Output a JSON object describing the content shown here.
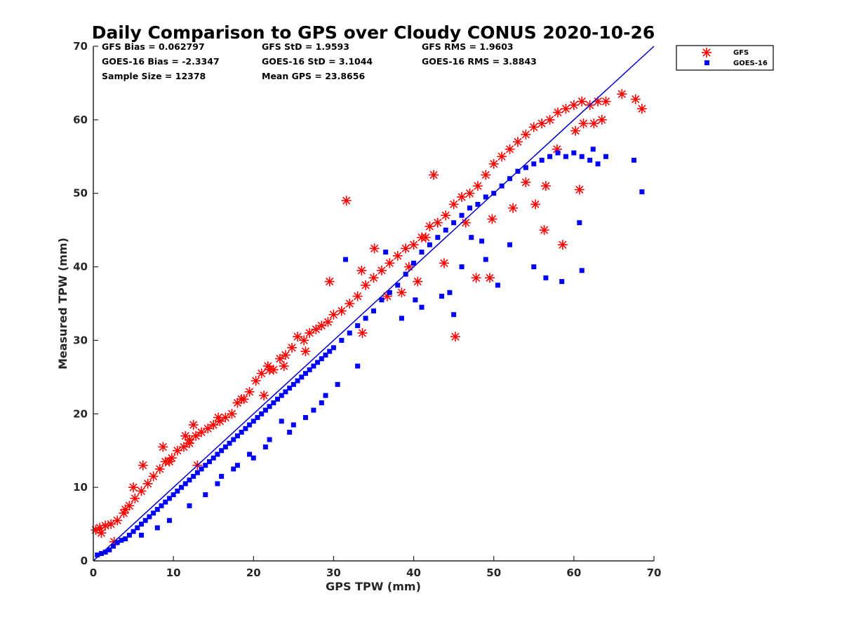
{
  "chart_data": {
    "type": "scatter",
    "title": "Daily Comparison to GPS over Cloudy CONUS 2020-10-26",
    "xlabel": "GPS TPW (mm)",
    "ylabel": "Measured TPW (mm)",
    "xlim": [
      0,
      70
    ],
    "ylim": [
      0,
      70
    ],
    "xticks": [
      0,
      10,
      20,
      30,
      40,
      50,
      60,
      70
    ],
    "yticks": [
      0,
      10,
      20,
      30,
      40,
      50,
      60,
      70
    ],
    "grid": false,
    "legend_position": "outside top-right",
    "reference_line": {
      "name": "1:1 line",
      "x": [
        0,
        70
      ],
      "y": [
        0,
        70
      ],
      "color": "#0000cc"
    },
    "annotations": [
      "GFS Bias = 0.062797",
      "GFS StD = 1.9593",
      "GFS RMS = 1.9603",
      "GOES-16 Bias = -2.3347",
      "GOES-16 StD = 3.1044",
      "GOES-16 RMS = 3.8843",
      "Sample Size = 12378",
      "Mean GPS = 23.8656"
    ],
    "series": [
      {
        "name": "GFS",
        "marker": "asterisk",
        "color": "#ff0000",
        "x": [
          0.3,
          0.8,
          1.5,
          2.2,
          3.0,
          3.8,
          4.5,
          5.2,
          6.0,
          6.8,
          7.5,
          8.3,
          9.0,
          9.8,
          10.5,
          11.3,
          12.0,
          12.8,
          13.5,
          14.3,
          15.0,
          15.8,
          16.5,
          17.3,
          18.0,
          18.8,
          19.5,
          20.3,
          21.0,
          21.8,
          22.5,
          23.3,
          24.0,
          24.8,
          25.5,
          26.3,
          27.0,
          27.8,
          28.5,
          29.3,
          30.0,
          31.0,
          32.0,
          33.0,
          34.0,
          35.0,
          36.0,
          37.0,
          38.0,
          39.0,
          40.0,
          41.0,
          42.0,
          43.0,
          44.0,
          45.0,
          46.0,
          47.0,
          48.0,
          49.0,
          50.0,
          51.0,
          52.0,
          53.0,
          54.0,
          55.0,
          56.0,
          57.0,
          58.0,
          59.0,
          60.0,
          61.0,
          62.0,
          63.0,
          64.0,
          5.0,
          8.7,
          11.5,
          13.0,
          22.0,
          31.6,
          42.5,
          45.2,
          47.8,
          56.3,
          58.6,
          60.7,
          66.0,
          67.7,
          68.5,
          4.0,
          6.2,
          9.5,
          12.5,
          15.6,
          18.5,
          21.3,
          23.8,
          26.5,
          29.5,
          33.5,
          36.7,
          39.4,
          41.5,
          43.8,
          46.5,
          49.8,
          52.4,
          55.2,
          57.9,
          60.2,
          62.5,
          1.0,
          2.6,
          12.0,
          33.6,
          35.1,
          38.5,
          40.5,
          49.5,
          54.0,
          56.5,
          61.2,
          63.5
        ],
        "y": [
          4.2,
          4.5,
          4.8,
          5.0,
          5.5,
          6.5,
          7.5,
          8.5,
          9.5,
          10.5,
          11.5,
          12.5,
          13.5,
          14.0,
          15.0,
          15.5,
          16.5,
          17.0,
          17.5,
          18.0,
          18.5,
          19.0,
          19.5,
          20.0,
          21.5,
          22.0,
          23.0,
          24.5,
          25.5,
          26.5,
          26.0,
          27.5,
          28.0,
          29.0,
          30.5,
          30.0,
          31.0,
          31.5,
          32.0,
          32.5,
          33.5,
          34.0,
          35.0,
          36.0,
          37.5,
          38.5,
          39.5,
          40.5,
          41.5,
          42.5,
          43.0,
          44.0,
          45.5,
          46.0,
          47.0,
          48.5,
          49.5,
          50.0,
          51.0,
          52.5,
          54.0,
          55.0,
          56.0,
          57.0,
          58.0,
          59.0,
          59.5,
          60.0,
          61.0,
          61.5,
          62.0,
          62.5,
          62.0,
          62.5,
          62.5,
          10.0,
          15.5,
          17.0,
          13.0,
          26.0,
          49.0,
          52.5,
          30.5,
          38.5,
          45.0,
          43.0,
          50.5,
          63.5,
          62.8,
          61.5,
          7.0,
          13.0,
          13.5,
          18.5,
          19.5,
          22.0,
          22.5,
          26.5,
          28.5,
          38.0,
          39.5,
          36.0,
          40.0,
          44.0,
          40.5,
          46.0,
          46.5,
          48.0,
          48.5,
          56.0,
          58.5,
          59.5,
          3.8,
          2.6,
          16.0,
          31.0,
          42.5,
          36.5,
          38.0,
          38.5,
          51.5,
          51.0,
          59.5,
          60.0
        ]
      },
      {
        "name": "GOES-16",
        "marker": "square",
        "color": "#0000ff",
        "x": [
          0.5,
          1.0,
          1.5,
          2.0,
          2.5,
          3.0,
          3.5,
          4.0,
          4.5,
          5.0,
          5.5,
          6.0,
          6.5,
          7.0,
          7.5,
          8.0,
          8.5,
          9.0,
          9.5,
          10.0,
          10.5,
          11.0,
          11.5,
          12.0,
          12.5,
          13.0,
          13.5,
          14.0,
          14.5,
          15.0,
          15.5,
          16.0,
          16.5,
          17.0,
          17.5,
          18.0,
          18.5,
          19.0,
          19.5,
          20.0,
          20.5,
          21.0,
          21.5,
          22.0,
          22.5,
          23.0,
          23.5,
          24.0,
          24.5,
          25.0,
          25.5,
          26.0,
          26.5,
          27.0,
          27.5,
          28.0,
          28.5,
          29.0,
          29.5,
          30.0,
          31.0,
          32.0,
          33.0,
          34.0,
          35.0,
          36.0,
          37.0,
          38.0,
          39.0,
          40.0,
          41.0,
          42.0,
          43.0,
          44.0,
          45.0,
          46.0,
          47.0,
          48.0,
          49.0,
          50.0,
          51.0,
          52.0,
          53.0,
          54.0,
          55.0,
          56.0,
          57.0,
          58.0,
          59.0,
          60.0,
          61.0,
          62.0,
          63.0,
          64.0,
          67.5,
          68.5,
          60.7,
          58.5,
          56.5,
          55.0,
          50.5,
          49.0,
          45.0,
          31.5,
          36.5,
          44.5,
          47.2,
          48.5,
          25.0,
          27.5,
          29.0,
          30.5,
          33.0,
          18.0,
          19.5,
          22.0,
          16.0,
          23.5,
          6.0,
          8.0,
          9.5,
          12.0,
          14.0,
          15.5,
          17.5,
          20.0,
          21.5,
          24.5,
          26.5,
          28.5,
          41.0,
          43.5,
          52.0,
          46.0,
          38.5,
          40.2,
          61.0,
          62.4
        ],
        "y": [
          0.8,
          1.0,
          1.2,
          1.5,
          2.0,
          2.5,
          2.8,
          3.0,
          3.5,
          4.0,
          4.5,
          5.0,
          5.5,
          6.0,
          6.5,
          7.0,
          7.5,
          8.0,
          8.5,
          9.0,
          9.5,
          10.0,
          10.5,
          11.0,
          11.5,
          12.0,
          12.5,
          13.0,
          13.5,
          14.0,
          14.5,
          15.0,
          15.5,
          16.0,
          16.5,
          17.0,
          17.5,
          18.0,
          18.5,
          19.0,
          19.5,
          20.0,
          20.5,
          21.0,
          21.5,
          22.0,
          22.5,
          23.0,
          23.5,
          24.0,
          24.5,
          25.0,
          25.5,
          26.0,
          26.5,
          27.0,
          27.5,
          28.0,
          28.5,
          29.0,
          30.0,
          31.0,
          32.0,
          33.0,
          34.0,
          35.5,
          36.5,
          37.5,
          39.0,
          40.5,
          42.0,
          43.0,
          44.0,
          45.0,
          46.0,
          47.0,
          48.0,
          48.5,
          49.5,
          50.0,
          51.0,
          52.0,
          53.0,
          53.5,
          54.0,
          54.5,
          55.0,
          55.5,
          55.0,
          55.5,
          55.0,
          54.5,
          54.0,
          55.0,
          54.5,
          50.2,
          46.0,
          38.0,
          38.5,
          40.0,
          37.5,
          41.0,
          33.5,
          41.0,
          42.0,
          36.5,
          44.0,
          43.5,
          18.5,
          20.5,
          22.5,
          24.0,
          26.5,
          13.0,
          14.5,
          16.5,
          11.5,
          19.0,
          3.5,
          4.5,
          5.5,
          7.5,
          9.0,
          10.5,
          12.5,
          14.0,
          15.5,
          17.5,
          19.5,
          21.5,
          34.5,
          36.0,
          43.0,
          40.0,
          33.0,
          35.5,
          39.5,
          56.0
        ]
      }
    ]
  }
}
